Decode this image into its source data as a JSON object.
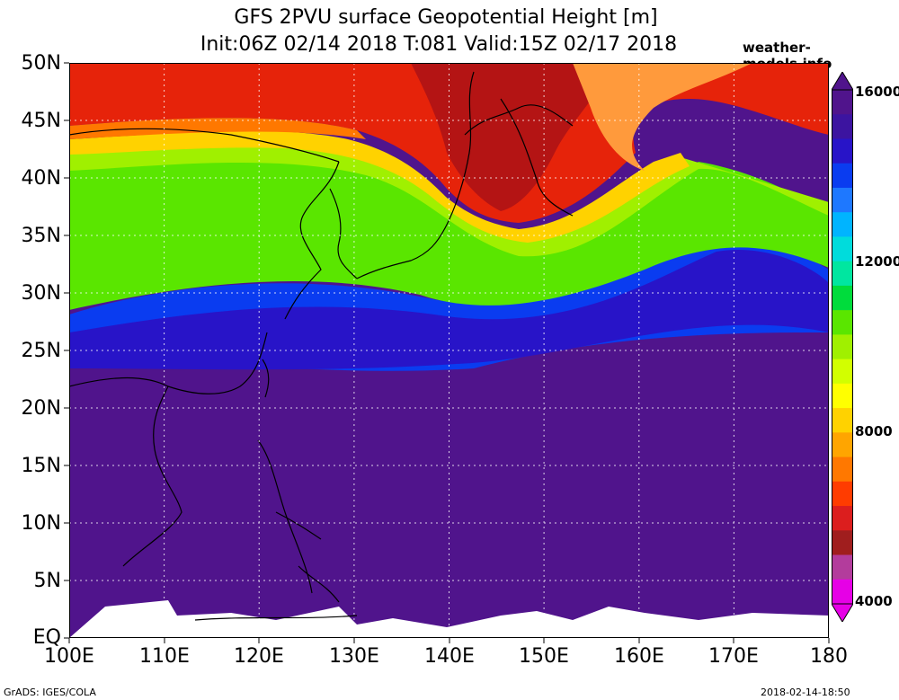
{
  "header": {
    "title_line1": "GFS 2PVU surface Geopotential Height [m]",
    "title_line2": "Init:06Z 02/14 2018 T:081 Valid:15Z 02/17 2018",
    "site": "weather-models.info"
  },
  "axes": {
    "lat_labels": [
      "50N",
      "45N",
      "40N",
      "35N",
      "30N",
      "25N",
      "20N",
      "15N",
      "10N",
      "5N",
      "EQ"
    ],
    "lon_labels": [
      "100E",
      "110E",
      "120E",
      "130E",
      "140E",
      "150E",
      "160E",
      "170E",
      "180"
    ]
  },
  "colorbar": {
    "labels": [
      "16000",
      "12000",
      "8000",
      "4000"
    ],
    "min": 4000,
    "max": 16000,
    "colors": [
      "#e600e6",
      "#b33c9c",
      "#a01e1e",
      "#dc1e1e",
      "#ff3c00",
      "#ff7800",
      "#ffa500",
      "#ffd200",
      "#ffff00",
      "#d2ff00",
      "#a0f000",
      "#5ae600",
      "#00dc3c",
      "#00e6a0",
      "#00dcdc",
      "#00b4ff",
      "#1e78ff",
      "#0a3cf0",
      "#2814c8",
      "#3c14a0",
      "#50148c"
    ]
  },
  "footer": {
    "left": "GrADS: IGES/COLA",
    "right": "2018-02-14-18:50"
  }
}
